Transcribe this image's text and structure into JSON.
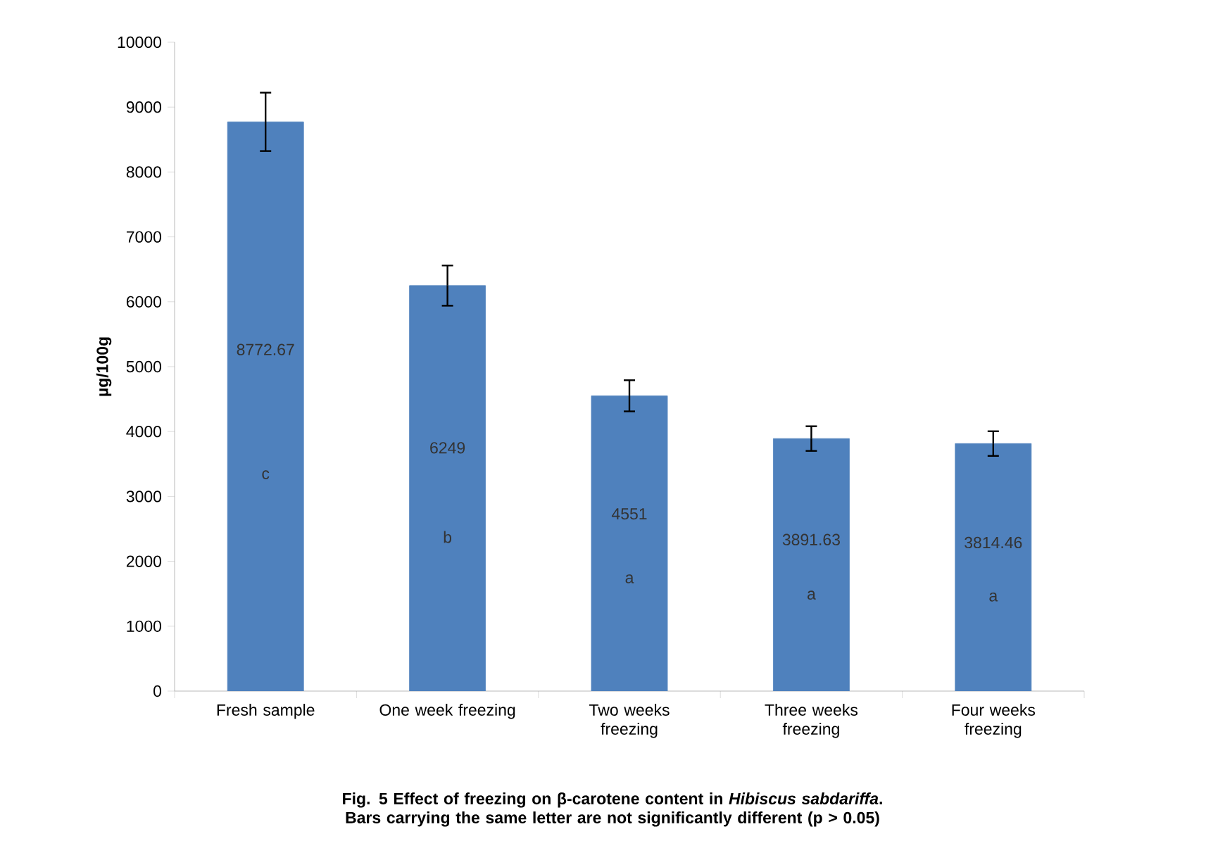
{
  "chart_data": {
    "type": "bar",
    "categories": [
      "Fresh sample",
      "One week freezing",
      "Two weeks freezing",
      "Three weeks freezing",
      "Four weeks freezing"
    ],
    "values": [
      8772.67,
      6249,
      4551,
      3891.63,
      3814.46
    ],
    "errors": [
      450,
      310,
      240,
      190,
      190
    ],
    "color": "#4f81bd",
    "ylabel": "µg/100g",
    "ylim": [
      0,
      10000
    ],
    "yticks": [
      0,
      1000,
      2000,
      3000,
      4000,
      5000,
      6000,
      7000,
      8000,
      9000,
      10000
    ],
    "data_labels": true,
    "grid": false,
    "annotations": [
      "c",
      "b",
      "a",
      "a",
      "a",
      "Fig. 5 Effect of freezing on β-carotene content in *Hibiscus sabdariffa*. Bars carrying the same letter are not significantly different  (p > 0.05)"
    ]
  }
}
